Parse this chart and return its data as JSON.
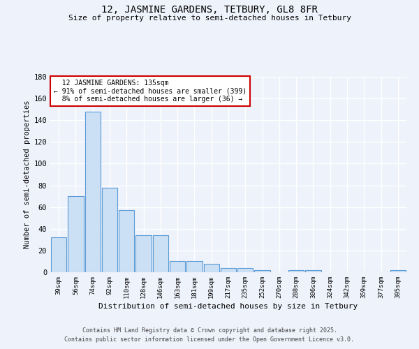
{
  "title1": "12, JASMINE GARDENS, TETBURY, GL8 8FR",
  "title2": "Size of property relative to semi-detached houses in Tetbury",
  "xlabel": "Distribution of semi-detached houses by size in Tetbury",
  "ylabel": "Number of semi-detached properties",
  "categories": [
    "39sqm",
    "56sqm",
    "74sqm",
    "92sqm",
    "110sqm",
    "128sqm",
    "146sqm",
    "163sqm",
    "181sqm",
    "199sqm",
    "217sqm",
    "235sqm",
    "252sqm",
    "270sqm",
    "288sqm",
    "306sqm",
    "324sqm",
    "342sqm",
    "359sqm",
    "377sqm",
    "395sqm"
  ],
  "values": [
    32,
    70,
    148,
    78,
    57,
    34,
    34,
    10,
    10,
    8,
    4,
    4,
    2,
    0,
    2,
    2,
    0,
    0,
    0,
    0,
    2
  ],
  "bar_color": "#cce0f5",
  "bar_edge_color": "#5b9bd5",
  "property_label": "12 JASMINE GARDENS: 135sqm",
  "smaller_pct": "91% of semi-detached houses are smaller (399)",
  "larger_pct": "8% of semi-detached houses are larger (36)",
  "annotation_box_color": "#ffffff",
  "annotation_border_color": "#cc0000",
  "ylim": [
    0,
    180
  ],
  "yticks": [
    0,
    20,
    40,
    60,
    80,
    100,
    120,
    140,
    160,
    180
  ],
  "background_color": "#eef2fb",
  "grid_color": "#ffffff",
  "footer1": "Contains HM Land Registry data © Crown copyright and database right 2025.",
  "footer2": "Contains public sector information licensed under the Open Government Licence v3.0."
}
